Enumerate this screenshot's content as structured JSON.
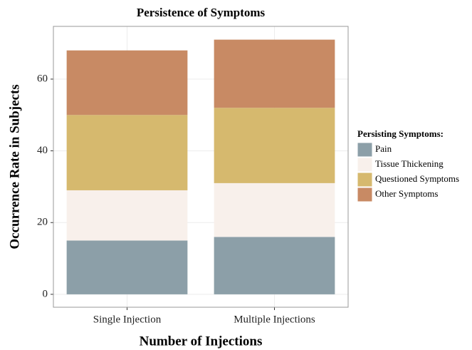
{
  "chart_data": {
    "type": "stacked_bar",
    "title": "Persistence of Symptoms",
    "x_label": "Number of Injections",
    "y_label": "Occurrence Rate in Subjects",
    "legend_title": "Persisting Symptoms:",
    "legend_position": "right",
    "categories": [
      "Single Injection",
      "Multiple Injections"
    ],
    "series": [
      {
        "name": "Pain",
        "color": "#8c9fa8",
        "values": [
          15,
          16
        ]
      },
      {
        "name": "Tissue Thickening",
        "color": "#f8f0eb",
        "values": [
          14,
          15
        ]
      },
      {
        "name": "Questioned Symptoms",
        "color": "#d6b96e",
        "values": [
          21,
          21
        ]
      },
      {
        "name": "Other Symptoms",
        "color": "#c88a64",
        "values": [
          18,
          19
        ]
      }
    ],
    "ylim": [
      -3.6,
      74.7
    ],
    "yticks": [
      0,
      20,
      40,
      60
    ],
    "grid": true
  }
}
